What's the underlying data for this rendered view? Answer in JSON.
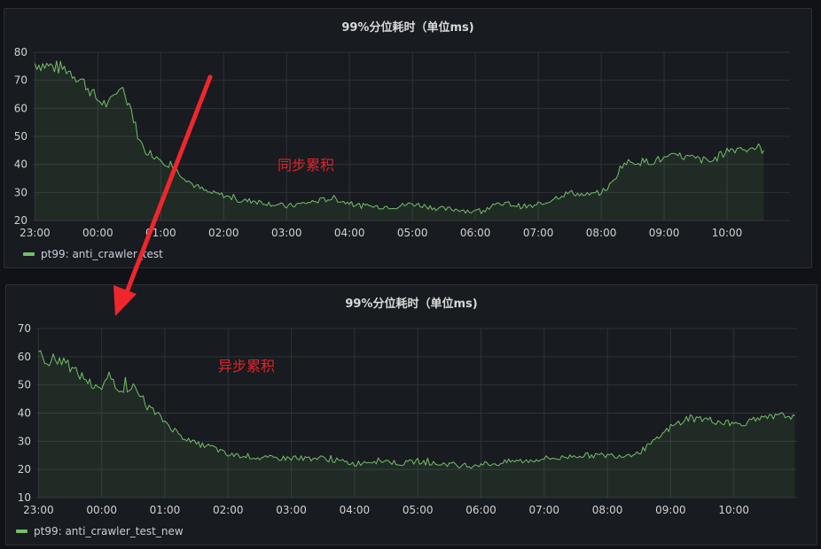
{
  "chart_data": [
    {
      "type": "line",
      "title": "99%分位耗时（单位ms)",
      "ylim": [
        20,
        80
      ],
      "yticks": [
        20,
        30,
        40,
        50,
        60,
        70,
        80
      ],
      "xtick_labels": [
        "23:00",
        "00:00",
        "01:00",
        "02:00",
        "03:00",
        "04:00",
        "05:00",
        "06:00",
        "07:00",
        "08:00",
        "09:00",
        "10:00"
      ],
      "xlim": [
        "22:58",
        "11:00"
      ],
      "grid": true,
      "legend": "bottom-left",
      "series": [
        {
          "name": "pt99: anti_crawler_test",
          "color": "#73bf69",
          "x": [
            "23:00",
            "23:15",
            "23:30",
            "23:45",
            "00:00",
            "00:10",
            "00:20",
            "00:30",
            "00:40",
            "00:50",
            "01:00",
            "01:15",
            "01:30",
            "01:45",
            "02:00",
            "02:15",
            "02:30",
            "02:45",
            "03:00",
            "03:15",
            "03:30",
            "03:45",
            "04:00",
            "04:15",
            "04:30",
            "04:45",
            "05:00",
            "05:15",
            "05:30",
            "05:45",
            "06:00",
            "06:15",
            "06:30",
            "06:45",
            "07:00",
            "07:15",
            "07:30",
            "07:45",
            "08:00",
            "08:10",
            "08:20",
            "08:30",
            "08:45",
            "09:00",
            "09:15",
            "09:30",
            "09:45",
            "10:00",
            "10:15",
            "10:30",
            "10:35"
          ],
          "values": [
            76,
            75,
            74,
            70,
            63,
            61,
            67,
            62,
            48,
            44,
            42,
            38,
            33,
            30,
            29,
            27,
            27,
            26,
            25,
            26,
            27,
            28,
            26,
            25,
            25,
            25,
            26,
            25,
            24,
            24,
            23,
            25,
            26,
            25,
            25,
            28,
            30,
            29,
            30,
            33,
            40,
            41,
            41,
            42,
            43,
            42,
            41,
            45,
            46,
            46,
            45
          ]
        }
      ]
    },
    {
      "type": "line",
      "title": "99%分位耗时（单位ms)",
      "ylim": [
        10,
        70
      ],
      "yticks": [
        10,
        20,
        30,
        40,
        50,
        60,
        70
      ],
      "xtick_labels": [
        "23:00",
        "00:00",
        "01:00",
        "02:00",
        "03:00",
        "04:00",
        "05:00",
        "06:00",
        "07:00",
        "08:00",
        "09:00",
        "10:00"
      ],
      "xlim": [
        "22:58",
        "11:00"
      ],
      "grid": true,
      "legend": "bottom-left",
      "series": [
        {
          "name": "pt99: anti_crawler_test_new",
          "color": "#73bf69",
          "x": [
            "23:00",
            "23:10",
            "23:20",
            "23:30",
            "23:45",
            "00:00",
            "00:05",
            "00:15",
            "00:30",
            "00:45",
            "01:00",
            "01:15",
            "01:30",
            "01:45",
            "02:00",
            "02:15",
            "02:30",
            "02:45",
            "03:00",
            "03:15",
            "03:30",
            "03:45",
            "04:00",
            "04:15",
            "04:30",
            "04:45",
            "05:00",
            "05:15",
            "05:30",
            "05:45",
            "06:00",
            "06:15",
            "06:30",
            "06:45",
            "07:00",
            "07:15",
            "07:30",
            "07:45",
            "08:00",
            "08:15",
            "08:30",
            "08:45",
            "09:00",
            "09:15",
            "09:30",
            "09:45",
            "10:00",
            "10:15",
            "10:30",
            "10:45",
            "10:58"
          ],
          "values": [
            61,
            58,
            59,
            56,
            52,
            47,
            54,
            49,
            49,
            42,
            37,
            32,
            29,
            28,
            25,
            25,
            24,
            24,
            24,
            24,
            24,
            23,
            22,
            23,
            23,
            22,
            23,
            22,
            22,
            21,
            22,
            22,
            23,
            23,
            24,
            24,
            25,
            25,
            25,
            25,
            26,
            30,
            35,
            38,
            38,
            37,
            36,
            37,
            38,
            39,
            39
          ]
        }
      ]
    }
  ],
  "annotations": {
    "top_note": "同步累积",
    "bottom_note": "异步累积"
  }
}
